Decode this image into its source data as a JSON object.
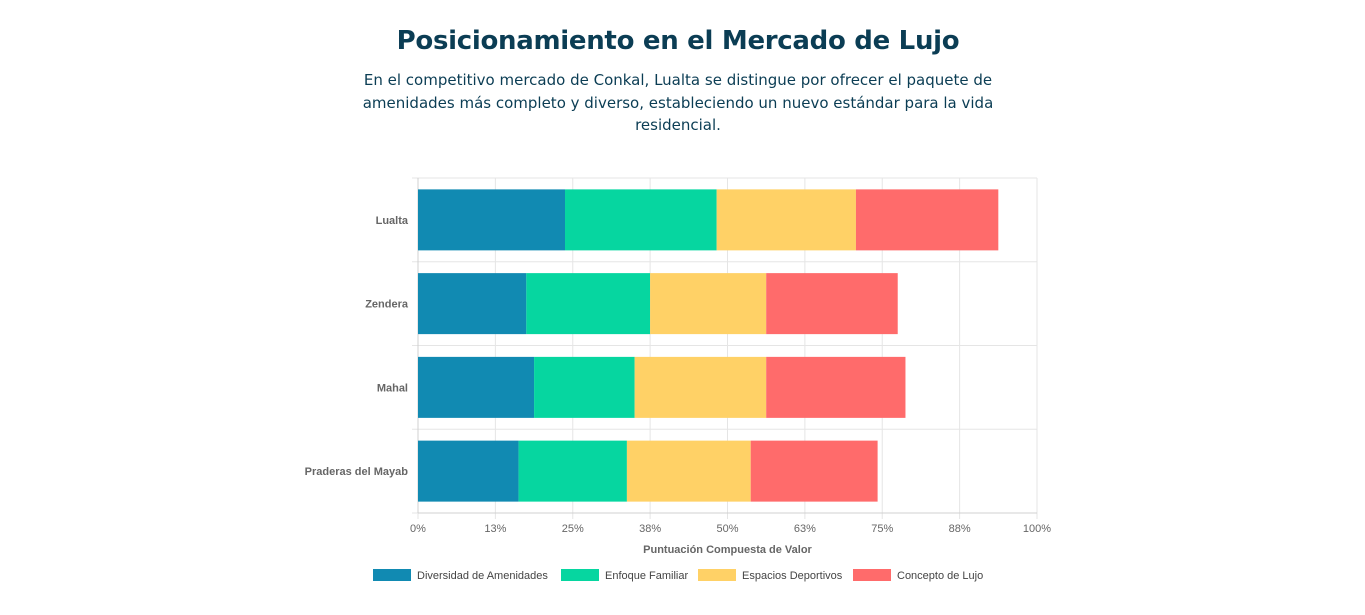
{
  "header": {
    "title": "Posicionamiento en el Mercado de Lujo",
    "subtitle": "En el competitivo mercado de Conkal, Lualta se distingue por ofrecer el paquete de amenidades más completo y diverso, estableciendo un nuevo estándar para la vida residencial."
  },
  "chart_data": {
    "type": "bar",
    "orientation": "horizontal",
    "stacked": true,
    "categories": [
      "Lualta",
      "Zendera",
      "Mahal",
      "Praderas del Mayab"
    ],
    "series": [
      {
        "name": "Diversidad de Amenidades",
        "color": "#118ab2",
        "values": [
          95,
          70,
          75,
          65
        ]
      },
      {
        "name": "Enfoque Familiar",
        "color": "#06d6a0",
        "values": [
          98,
          80,
          65,
          70
        ]
      },
      {
        "name": "Espacios Deportivos",
        "color": "#ffd166",
        "values": [
          90,
          75,
          85,
          80
        ]
      },
      {
        "name": "Concepto de Lujo",
        "color": "#ff6b6b",
        "values": [
          92,
          85,
          90,
          82
        ]
      }
    ],
    "xlabel": "Puntuación Compuesta de Valor",
    "xlim": [
      0,
      400
    ],
    "tick_labels": [
      "0%",
      "13%",
      "25%",
      "38%",
      "50%",
      "63%",
      "75%",
      "88%",
      "100%"
    ],
    "grid": true,
    "legend_position": "bottom"
  }
}
